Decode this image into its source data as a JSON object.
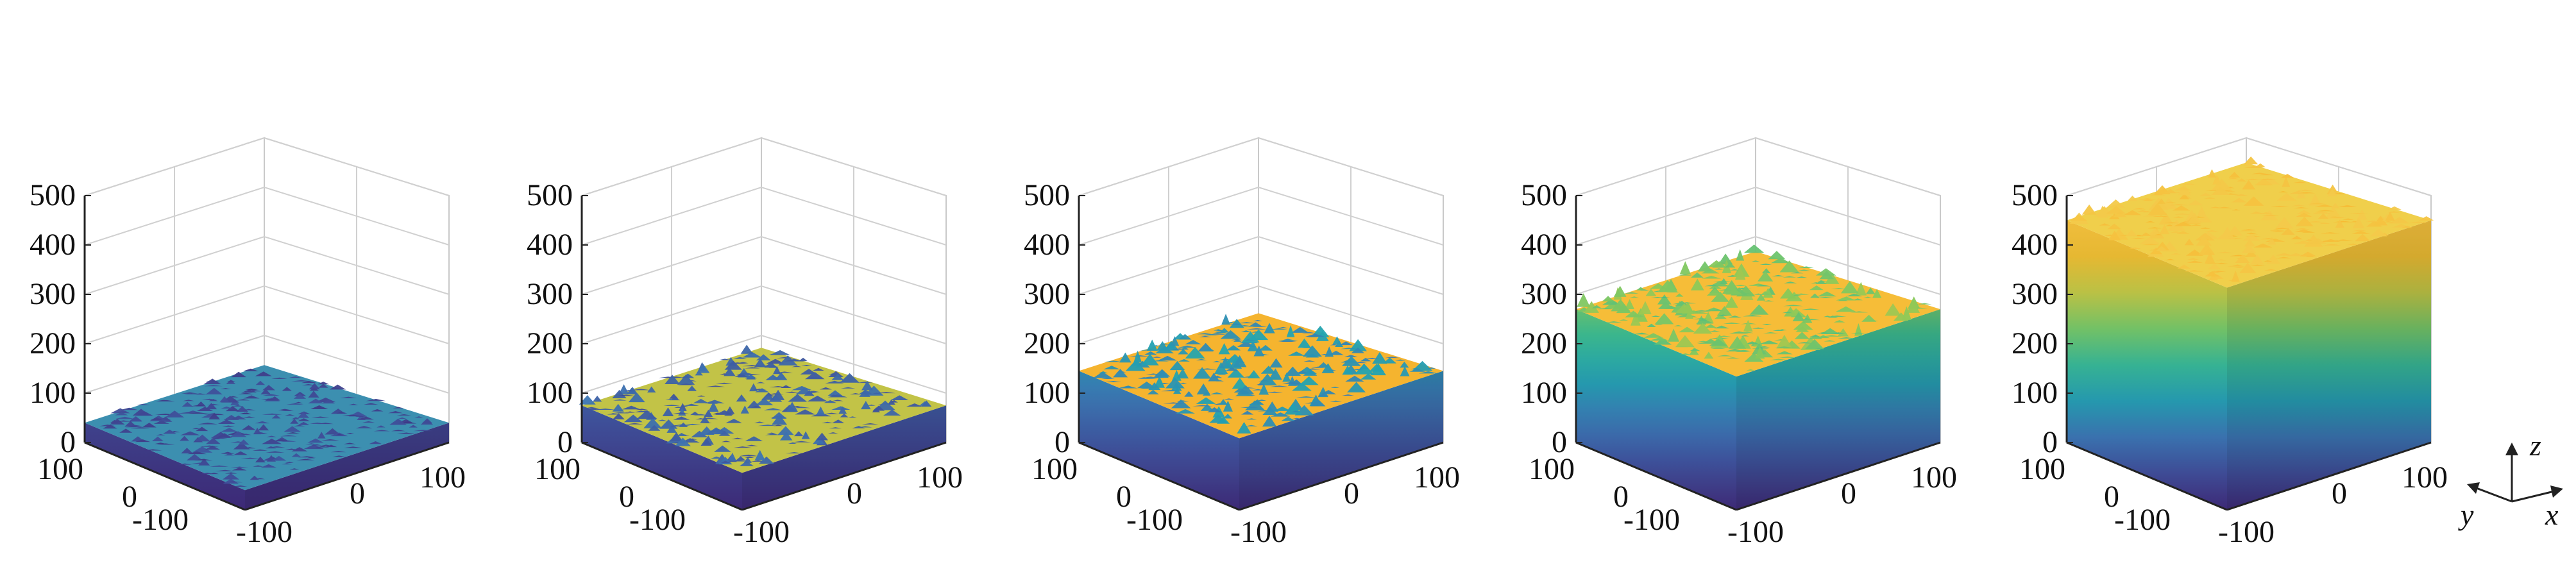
{
  "figure": {
    "type": "surface-3d-panels",
    "panel_count": 5,
    "colormap": [
      "#3e2a78",
      "#3f4f9a",
      "#3b78b5",
      "#22a2b2",
      "#3dbb8e",
      "#89c95a",
      "#d8c33c",
      "#f7b72e",
      "#f3c94a"
    ],
    "axes_triad": {
      "z_label": "z",
      "y_label": "y",
      "x_label": "x"
    }
  },
  "chart_data": [
    {
      "type": "surface-3d",
      "z_ticks": [
        "0",
        "100",
        "200",
        "300",
        "400",
        "500"
      ],
      "x_ticks": [
        "-100",
        "0",
        "100"
      ],
      "y_ticks": [
        "-100",
        "0",
        "100"
      ],
      "zlim": [
        0,
        500
      ],
      "xlim": [
        -100,
        100
      ],
      "ylim": [
        -100,
        100
      ],
      "grid": true,
      "surface_mean_height": 40,
      "surface_roughness": 20,
      "top_color": "#3c8fb0"
    },
    {
      "type": "surface-3d",
      "z_ticks": [
        "0",
        "100",
        "200",
        "300",
        "400",
        "500"
      ],
      "x_ticks": [
        "-100",
        "0",
        "100"
      ],
      "y_ticks": [
        "-100",
        "0",
        "100"
      ],
      "zlim": [
        0,
        500
      ],
      "xlim": [
        -100,
        100
      ],
      "ylim": [
        -100,
        100
      ],
      "grid": true,
      "surface_mean_height": 75,
      "surface_roughness": 30,
      "top_color": "#c2c347"
    },
    {
      "type": "surface-3d",
      "z_ticks": [
        "0",
        "100",
        "200",
        "300",
        "400",
        "500"
      ],
      "x_ticks": [
        "-100",
        "0",
        "100"
      ],
      "y_ticks": [
        "-100",
        "0",
        "100"
      ],
      "zlim": [
        0,
        500
      ],
      "xlim": [
        -100,
        100
      ],
      "ylim": [
        -100,
        100
      ],
      "grid": true,
      "surface_mean_height": 145,
      "surface_roughness": 35,
      "top_color": "#f5b42f"
    },
    {
      "type": "surface-3d",
      "z_ticks": [
        "0",
        "100",
        "200",
        "300",
        "400",
        "500"
      ],
      "x_ticks": [
        "-100",
        "0",
        "100"
      ],
      "y_ticks": [
        "-100",
        "0",
        "100"
      ],
      "zlim": [
        0,
        500
      ],
      "xlim": [
        -100,
        100
      ],
      "ylim": [
        -100,
        100
      ],
      "grid": true,
      "surface_mean_height": 270,
      "surface_roughness": 40,
      "top_color": "#f6bd38"
    },
    {
      "type": "surface-3d",
      "z_ticks": [
        "0",
        "100",
        "200",
        "300",
        "400",
        "500"
      ],
      "x_ticks": [
        "-100",
        "0",
        "100"
      ],
      "y_ticks": [
        "-100",
        "0",
        "100"
      ],
      "zlim": [
        0,
        500
      ],
      "xlim": [
        -100,
        100
      ],
      "ylim": [
        -100,
        100
      ],
      "grid": true,
      "surface_mean_height": 450,
      "surface_roughness": 35,
      "top_color": "#f0cf4b"
    }
  ]
}
